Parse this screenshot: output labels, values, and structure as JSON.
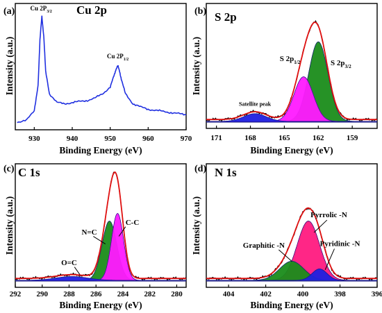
{
  "chart_data": [
    {
      "type": "line",
      "panel_label": "(a)",
      "title": "Cu 2p",
      "xlabel": "Binding Energy (eV)",
      "ylabel": "Intensity (a.u.)",
      "xlim": [
        925,
        970
      ],
      "xticks": [
        "930",
        "940",
        "950",
        "960",
        "970"
      ],
      "series": [
        {
          "color": "#1f2fe0",
          "x": [
            925.5,
            928,
            930,
            931,
            931.5,
            932,
            932.5,
            933,
            934,
            936,
            938,
            940,
            942,
            944,
            946,
            948,
            950,
            951,
            951.5,
            952,
            952.5,
            953,
            954,
            956,
            958,
            960,
            962,
            964,
            966,
            968,
            970
          ],
          "y": [
            0.04,
            0.07,
            0.14,
            0.38,
            0.78,
            1.0,
            0.82,
            0.5,
            0.3,
            0.22,
            0.21,
            0.22,
            0.23,
            0.24,
            0.26,
            0.3,
            0.36,
            0.46,
            0.52,
            0.55,
            0.5,
            0.42,
            0.3,
            0.21,
            0.18,
            0.16,
            0.15,
            0.14,
            0.13,
            0.12,
            0.11
          ]
        }
      ],
      "annotations": [
        {
          "text": "Cu 2P",
          "sub": "3/2",
          "x": 931.8,
          "y": 1.05
        },
        {
          "text": "Cu 2P",
          "sub": "1/2",
          "x": 952,
          "y": 0.62
        }
      ]
    },
    {
      "type": "area",
      "panel_label": "(b)",
      "title": "S 2p",
      "xlabel": "Binding Energy (eV)",
      "ylabel": "Intensity (a.u.)",
      "xlim": [
        171.9,
        156.8
      ],
      "xticks": [
        "171",
        "168",
        "165",
        "162",
        "159"
      ],
      "components": [
        {
          "color": "#1a8c1a",
          "center": 162.0,
          "amp": 0.82,
          "width": 0.85
        },
        {
          "color": "#ff1aff",
          "center": 163.3,
          "amp": 0.46,
          "width": 0.85
        },
        {
          "color": "#2020e0",
          "center": 167.6,
          "amp": 0.08,
          "width": 1.0
        }
      ],
      "annotations": [
        {
          "text": "Satellite peak",
          "x": 167.6,
          "y": 0.16
        },
        {
          "text": "S 2p",
          "sub": "1/2",
          "x": 164.5,
          "y": 0.62
        },
        {
          "text": "S 2p",
          "sub": "3/2",
          "x": 160.0,
          "y": 0.58
        }
      ]
    },
    {
      "type": "area",
      "panel_label": "(c)",
      "title": "C 1s",
      "xlabel": "Binding Energy (eV)",
      "ylabel": "Intensity (a.u.)",
      "xlim": [
        292,
        279.3
      ],
      "xticks": [
        "292",
        "290",
        "288",
        "286",
        "284",
        "282",
        "280"
      ],
      "components": [
        {
          "color": "#1a8c1a",
          "center": 285.0,
          "amp": 0.62,
          "width": 0.55
        },
        {
          "color": "#ff1aff",
          "center": 284.4,
          "amp": 0.7,
          "width": 0.45
        },
        {
          "color": "#2020e0",
          "center": 287.8,
          "amp": 0.04,
          "width": 1.2
        }
      ],
      "annotations": [
        {
          "text": "O=C",
          "x": 288.0,
          "y": 0.16
        },
        {
          "text": "N=C",
          "x": 286.5,
          "y": 0.48
        },
        {
          "text": "C-C",
          "x": 283.3,
          "y": 0.58
        }
      ]
    },
    {
      "type": "area",
      "panel_label": "(d)",
      "title": "N 1s",
      "xlabel": "Binding Energy (eV)",
      "ylabel": "Intensity (a.u.)",
      "xlim": [
        405.2,
        396
      ],
      "xticks": [
        "404",
        "402",
        "400",
        "398",
        "396"
      ],
      "components": [
        {
          "color": "#ff1a7f",
          "center": 399.7,
          "amp": 0.62,
          "width": 0.6
        },
        {
          "color": "#1a8c1a",
          "center": 400.6,
          "amp": 0.2,
          "width": 0.65
        },
        {
          "color": "#2020e0",
          "center": 399.1,
          "amp": 0.12,
          "width": 0.4
        }
      ],
      "annotations": [
        {
          "text": "Pyrrolic -N",
          "x": 398.6,
          "y": 0.66
        },
        {
          "text": "Graphitic -N",
          "x": 402.1,
          "y": 0.34
        },
        {
          "text": "Pyridinic -N",
          "x": 398.0,
          "y": 0.36
        }
      ]
    }
  ]
}
